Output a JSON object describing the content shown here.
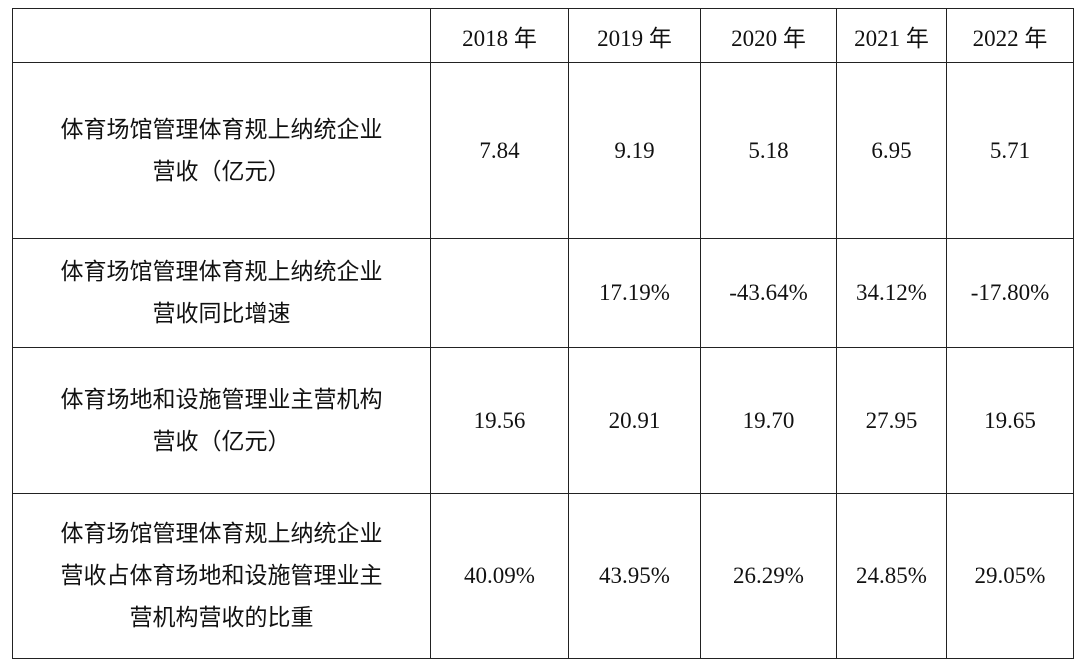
{
  "table": {
    "header": [
      "2018 年",
      "2019 年",
      "2020 年",
      "2021 年",
      "2022 年"
    ],
    "rows": [
      {
        "label_lines": [
          "体育场馆管理体育规上纳统企业",
          "营收（亿元）"
        ],
        "cells": [
          "7.84",
          "9.19",
          "5.18",
          "6.95",
          "5.71"
        ]
      },
      {
        "label_lines": [
          "体育场馆管理体育规上纳统企业",
          "营收同比增速"
        ],
        "cells": [
          null,
          "17.19%",
          "-43.64%",
          "34.12%",
          "-17.80%"
        ]
      },
      {
        "label_lines": [
          "体育场地和设施管理业主营机构",
          "营收（亿元）"
        ],
        "cells": [
          "19.56",
          "20.91",
          "19.70",
          "27.95",
          "19.65"
        ]
      },
      {
        "label_lines": [
          "体育场馆管理体育规上纳统企业",
          "营收占体育场地和设施管理业主",
          "营机构营收的比重"
        ],
        "cells": [
          "40.09%",
          "43.95%",
          "26.29%",
          "24.85%",
          "29.05%"
        ]
      }
    ]
  }
}
